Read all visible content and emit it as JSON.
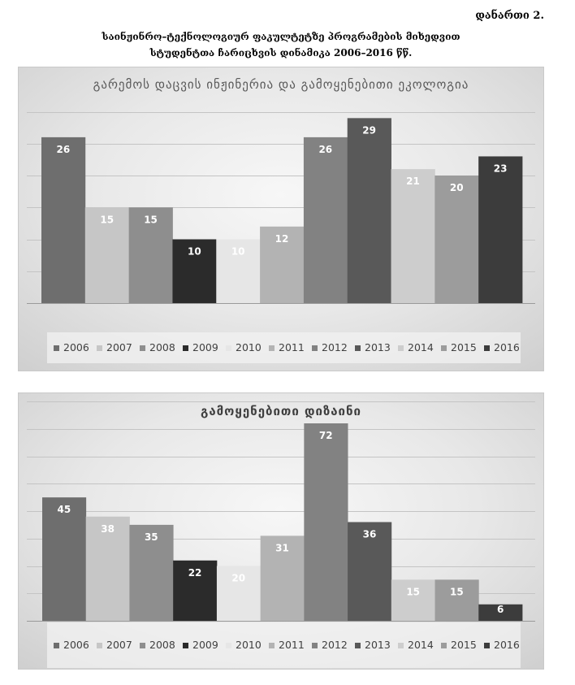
{
  "header": {
    "annex_label": "დანართი 2.",
    "title_line1": "საინჟინრო–ტექნოლოგიურ ფაკულტეტზე პროგრამების მიხედვით",
    "title_line2": "სტუდენტთა ჩარიცხვის დინამიკა 2006–2016 წწ."
  },
  "chart_data": [
    {
      "type": "bar",
      "title": "გარემოს დაცვის ინჟინერია და გამოყენებითი ეკოლოგია",
      "ylim": [
        0,
        30
      ],
      "y_major_unit": 5,
      "grid": true,
      "data_labels": true,
      "legend": "bottom",
      "series": [
        {
          "name": "2006",
          "values": [
            26
          ],
          "color": "#6e6e6e"
        },
        {
          "name": "2007",
          "values": [
            15
          ],
          "color": "#c6c6c6"
        },
        {
          "name": "2008",
          "values": [
            15
          ],
          "color": "#8e8e8e"
        },
        {
          "name": "2009",
          "values": [
            10
          ],
          "color": "#2b2b2b"
        },
        {
          "name": "2010",
          "values": [
            10
          ],
          "color": "#e6e6e6"
        },
        {
          "name": "2011",
          "values": [
            12
          ],
          "color": "#b3b3b3"
        },
        {
          "name": "2012",
          "values": [
            26
          ],
          "color": "#828282"
        },
        {
          "name": "2013",
          "values": [
            29
          ],
          "color": "#595959"
        },
        {
          "name": "2014",
          "values": [
            21
          ],
          "color": "#cdcdcd"
        },
        {
          "name": "2015",
          "values": [
            20
          ],
          "color": "#9c9c9c"
        },
        {
          "name": "2016",
          "values": [
            23
          ],
          "color": "#3c3c3c"
        }
      ]
    },
    {
      "type": "bar",
      "title": "გამოყენებითი დიზაინი",
      "ylim": [
        0,
        80
      ],
      "y_major_unit": 10,
      "grid": true,
      "data_labels": true,
      "legend": "bottom",
      "series": [
        {
          "name": "2006",
          "values": [
            45
          ],
          "color": "#6e6e6e"
        },
        {
          "name": "2007",
          "values": [
            38
          ],
          "color": "#c6c6c6"
        },
        {
          "name": "2008",
          "values": [
            35
          ],
          "color": "#8e8e8e"
        },
        {
          "name": "2009",
          "values": [
            22
          ],
          "color": "#2b2b2b"
        },
        {
          "name": "2010",
          "values": [
            20
          ],
          "color": "#e6e6e6"
        },
        {
          "name": "2011",
          "values": [
            31
          ],
          "color": "#b3b3b3"
        },
        {
          "name": "2012",
          "values": [
            72
          ],
          "color": "#828282"
        },
        {
          "name": "2013",
          "values": [
            36
          ],
          "color": "#595959"
        },
        {
          "name": "2014",
          "values": [
            15
          ],
          "color": "#cdcdcd"
        },
        {
          "name": "2015",
          "values": [
            15
          ],
          "color": "#9c9c9c"
        },
        {
          "name": "2016",
          "values": [
            6
          ],
          "color": "#3c3c3c"
        }
      ]
    }
  ]
}
